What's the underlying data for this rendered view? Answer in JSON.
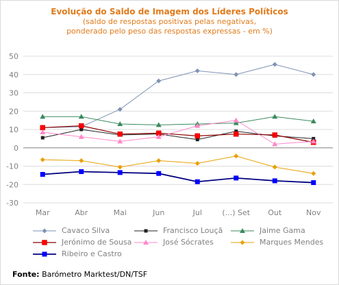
{
  "chart_data": {
    "type": "line",
    "title": "Evolução do Saldo  de Imagem dos Líderes Políticos",
    "subtitle_lines": [
      "(saldo de respostas positivas pelas negativas,",
      "ponderado pelo peso das respostas expressas - em %)"
    ],
    "categories": [
      "Mar",
      "Abr",
      "Mai",
      "Jun",
      "Jul",
      "(...) Set",
      "Out",
      "Nov"
    ],
    "ylim": [
      -30,
      50
    ],
    "yticks": [
      -30,
      -20,
      -10,
      0,
      10,
      20,
      30,
      40,
      50
    ],
    "grid": true,
    "legend_position": "bottom",
    "series": [
      {
        "name": "Cavaco Silva",
        "color": "#7f93b4",
        "marker": "diamond",
        "line_width": 1,
        "values": [
          11,
          11.5,
          21,
          36.5,
          42,
          40,
          45.5,
          40
        ]
      },
      {
        "name": "Francisco Louçã",
        "color": "#222222",
        "marker": "square-small",
        "line_width": 1,
        "values": [
          5.5,
          10,
          7,
          7.5,
          4.5,
          9,
          6.5,
          5
        ]
      },
      {
        "name": "Jaime Gama",
        "color": "#3a8a5e",
        "marker": "triangle",
        "line_width": 1,
        "values": [
          17,
          17,
          13,
          12.5,
          13,
          13.5,
          17,
          14.5
        ]
      },
      {
        "name": "Jerónimo de Sousa",
        "color": "#8b0000",
        "marker": "square-red",
        "line_width": 1.2,
        "values": [
          11,
          12,
          7.5,
          8,
          6.5,
          7.5,
          7,
          3
        ]
      },
      {
        "name": "José Sócrates",
        "color": "#ff88c8",
        "marker": "triangle",
        "line_width": 1,
        "values": [
          8.5,
          6,
          3.5,
          6,
          12,
          15,
          2,
          3.5
        ]
      },
      {
        "name": "Marques Mendes",
        "color": "#e8a000",
        "marker": "diamond",
        "line_width": 1,
        "values": [
          -6.5,
          -7,
          -10.5,
          -7,
          -8.5,
          -4.5,
          -10.5,
          -14
        ]
      },
      {
        "name": "Ribeiro e Castro",
        "color": "#000080",
        "marker": "square-blue",
        "line_width": 1.8,
        "values": [
          -14.5,
          -13,
          -13.5,
          -14,
          -18.5,
          -16.5,
          -18,
          -19
        ]
      }
    ]
  },
  "source": {
    "label": "Fonte:",
    "text": " Barómetro Marktest/DN/TSF"
  }
}
